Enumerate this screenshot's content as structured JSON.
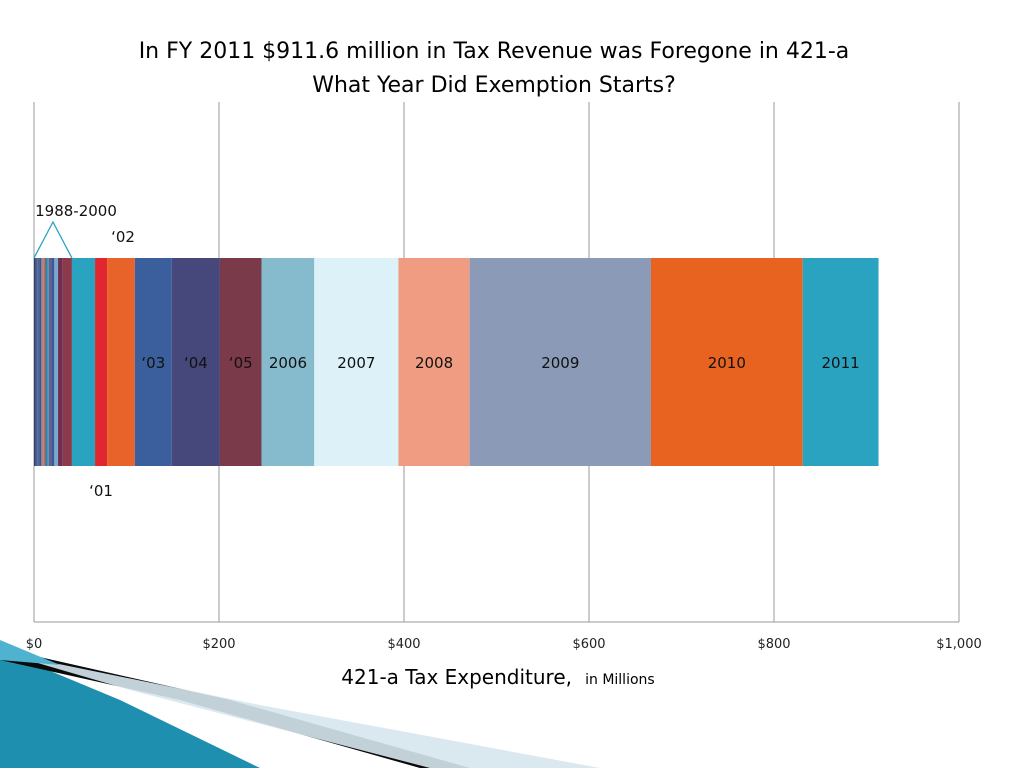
{
  "chart_data": {
    "type": "bar",
    "orientation": "horizontal-stacked",
    "title_line1": "In FY 2011 $911.6 million in Tax Revenue was Foregone in 421-a",
    "title_line2": "What Year Did Exemption Starts?",
    "xlabel_main": "421-a Tax Expenditure,",
    "xlabel_unit": "in Millions",
    "xlim": [
      0,
      1000
    ],
    "grid": true,
    "ticks": [
      {
        "value": 0,
        "label": "$0"
      },
      {
        "value": 200,
        "label": "$200"
      },
      {
        "value": 400,
        "label": "$400"
      },
      {
        "value": 600,
        "label": "$600"
      },
      {
        "value": 800,
        "label": "$800"
      },
      {
        "value": 1000,
        "label": "$1,000"
      }
    ],
    "series": [
      {
        "name": "1988",
        "value": 2,
        "color": "#2f3f68",
        "label": ""
      },
      {
        "name": "1989",
        "value": 2,
        "color": "#4a5d8c",
        "label": ""
      },
      {
        "name": "1990",
        "value": 2,
        "color": "#3d6aa6",
        "label": ""
      },
      {
        "name": "1991",
        "value": 2,
        "color": "#5a4a7a",
        "label": ""
      },
      {
        "name": "1992",
        "value": 2,
        "color": "#8a8fb0",
        "label": ""
      },
      {
        "name": "1993",
        "value": 2,
        "color": "#e8632a",
        "label": ""
      },
      {
        "name": "1994",
        "value": 2,
        "color": "#3a6ea5",
        "label": ""
      },
      {
        "name": "1995",
        "value": 2,
        "color": "#2aa3c0",
        "label": ""
      },
      {
        "name": "1996",
        "value": 3,
        "color": "#6a5b8c",
        "label": ""
      },
      {
        "name": "1997",
        "value": 3,
        "color": "#3b5a95",
        "label": ""
      },
      {
        "name": "1998",
        "value": 4,
        "color": "#7aa8d0",
        "label": ""
      },
      {
        "name": "1999",
        "value": 5,
        "color": "#6e2f4f",
        "label": ""
      },
      {
        "name": "2000",
        "value": 10,
        "color": "#8a3a4a",
        "label": ""
      },
      {
        "name": "2001",
        "value": 25,
        "color": "#2aa3c0",
        "label": ""
      },
      {
        "name": "2002",
        "value": 13,
        "color": "#e0262e",
        "label": ""
      },
      {
        "name": "2002b",
        "value": 30,
        "color": "#e8632a",
        "label": ""
      },
      {
        "name": "2003",
        "value": 40,
        "color": "#3a5f9c",
        "label": "‘03"
      },
      {
        "name": "2004",
        "value": 52,
        "color": "#46477a",
        "label": "‘04"
      },
      {
        "name": "2005",
        "value": 45,
        "color": "#7a3a4a",
        "label": "‘05"
      },
      {
        "name": "2006",
        "value": 57,
        "color": "#86bbce",
        "label": "2006"
      },
      {
        "name": "2007",
        "value": 91,
        "color": "#ddf1f8",
        "label": "2007"
      },
      {
        "name": "2008",
        "value": 77,
        "color": "#f09c82",
        "label": "2008"
      },
      {
        "name": "2009",
        "value": 196,
        "color": "#8b9ab7",
        "label": "2009"
      },
      {
        "name": "2010",
        "value": 164,
        "color": "#e8631f",
        "label": "2010"
      },
      {
        "name": "2011",
        "value": 82,
        "color": "#2aa3c0",
        "label": "2011"
      }
    ],
    "annotations": {
      "range_label": "1988-2000",
      "label_02": "‘02",
      "label_01": "‘01"
    }
  }
}
